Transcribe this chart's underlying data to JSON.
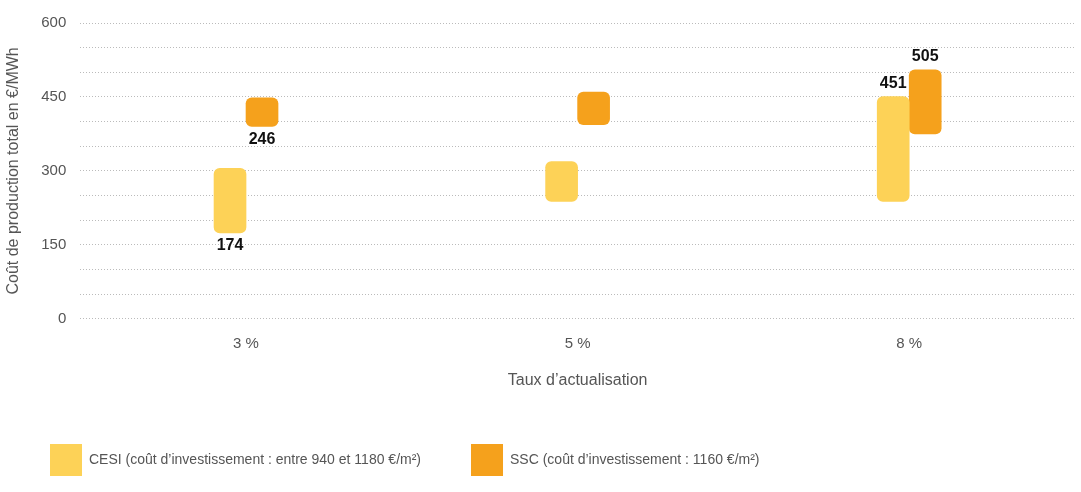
{
  "chart_data": {
    "type": "bar",
    "xlabel": "Taux d’actualisation",
    "ylabel": "Coût de production total en €/MWh",
    "categories": [
      "3 %",
      "5 %",
      "8 %"
    ],
    "series": [
      {
        "name": "CESI (coût d’investissement : entre 940 et 1180 €/m²)",
        "color": "#fdd257",
        "base": [
          174,
          238,
          238
        ],
        "values": [
          131,
          81,
          213
        ]
      },
      {
        "name": "SSC (coût d’investissement : 1160 €/m²)",
        "color": "#f5a11c",
        "base": [
          390,
          394,
          375
        ],
        "values": [
          58,
          66,
          130
        ]
      }
    ],
    "annotations": [
      {
        "text": "174",
        "x": "3 %",
        "y": 174
      },
      {
        "text": "246",
        "x": "3 %",
        "y": 390
      },
      {
        "text": "451",
        "x": "8 %",
        "y": 451
      },
      {
        "text": "505",
        "x": "8 %",
        "y": 505
      }
    ],
    "ylim": [
      0,
      600
    ],
    "yticks": [
      0,
      {
        "value": 50,
        "label": null
      },
      {
        "value": 100,
        "label": null
      },
      150,
      {
        "value": 200,
        "label": null
      },
      {
        "value": 250,
        "label": null
      },
      300,
      {
        "value": 350,
        "label": null
      },
      {
        "value": 400,
        "label": null
      },
      450,
      {
        "value": 500,
        "label": null
      },
      {
        "value": 550,
        "label": null
      },
      600
    ],
    "grid": "y",
    "legend": "bottom left"
  }
}
